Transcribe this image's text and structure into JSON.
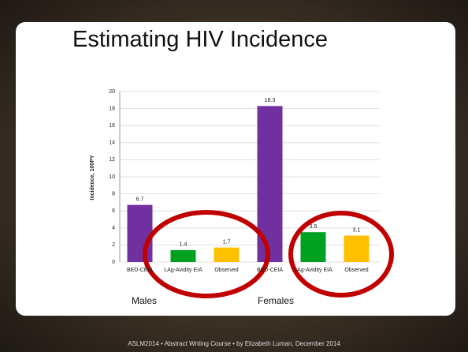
{
  "slide": {
    "title": "Estimating HIV Incidence",
    "footer": "ASLM2014 • Abstract Writing Course • by Elizabeth Luman, December 2014"
  },
  "chart_data": {
    "type": "bar",
    "y_label": "Incidence, 100PY",
    "groups": [
      "Males",
      "Females"
    ],
    "categories": [
      "BED-CEIA",
      "LAg-Avidity EIA",
      "Observed",
      "BED-CEIA",
      "LAg-Avidity EIA",
      "Observed"
    ],
    "values": [
      6.7,
      1.4,
      1.7,
      18.3,
      3.5,
      3.1
    ],
    "colors": [
      "#7030a0",
      "#00a020",
      "#ffc000",
      "#7030a0",
      "#00a020",
      "#ffc000"
    ],
    "ylim": [
      0,
      20
    ],
    "yticks": [
      0,
      2,
      4,
      6,
      8,
      10,
      12,
      14,
      16,
      18,
      20
    ],
    "grid": true
  }
}
